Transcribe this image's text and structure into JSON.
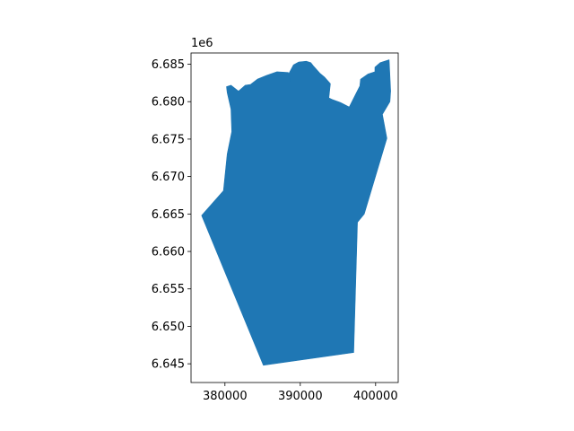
{
  "chart_data": {
    "type": "map",
    "offset_text": "1e6",
    "xlim": [
      375500,
      403000
    ],
    "ylim": [
      6642500,
      6686500
    ],
    "x_ticks": [
      {
        "value": 380000,
        "label": "380000"
      },
      {
        "value": 390000,
        "label": "390000"
      },
      {
        "value": 400000,
        "label": "400000"
      }
    ],
    "y_ticks": [
      {
        "value": 6645000,
        "label": "6.645"
      },
      {
        "value": 6650000,
        "label": "6.650"
      },
      {
        "value": 6655000,
        "label": "6.655"
      },
      {
        "value": 6660000,
        "label": "6.660"
      },
      {
        "value": 6665000,
        "label": "6.665"
      },
      {
        "value": 6670000,
        "label": "6.670"
      },
      {
        "value": 6675000,
        "label": "6.675"
      },
      {
        "value": 6680000,
        "label": "6.680"
      },
      {
        "value": 6685000,
        "label": "6.685"
      }
    ],
    "fill_color": "#1f77b4",
    "region": [
      [
        385100,
        6644800
      ],
      [
        397100,
        6646500
      ],
      [
        397600,
        6663900
      ],
      [
        398500,
        6665000
      ],
      [
        401500,
        6675100
      ],
      [
        400900,
        6678300
      ],
      [
        401900,
        6680000
      ],
      [
        402000,
        6681400
      ],
      [
        401800,
        6685600
      ],
      [
        400600,
        6685200
      ],
      [
        399900,
        6684600
      ],
      [
        399900,
        6684000
      ],
      [
        399000,
        6683700
      ],
      [
        398000,
        6683000
      ],
      [
        397900,
        6682100
      ],
      [
        397300,
        6680900
      ],
      [
        396500,
        6679300
      ],
      [
        395300,
        6679900
      ],
      [
        394200,
        6680300
      ],
      [
        393800,
        6680500
      ],
      [
        394000,
        6682400
      ],
      [
        393200,
        6683300
      ],
      [
        392600,
        6683800
      ],
      [
        391800,
        6684700
      ],
      [
        391400,
        6685200
      ],
      [
        390800,
        6685400
      ],
      [
        389800,
        6685300
      ],
      [
        389100,
        6684900
      ],
      [
        388400,
        6683600
      ],
      [
        388700,
        6682700
      ],
      [
        388400,
        6683900
      ],
      [
        386900,
        6684000
      ],
      [
        385500,
        6683500
      ],
      [
        384300,
        6683000
      ],
      [
        383400,
        6682300
      ],
      [
        382700,
        6682200
      ],
      [
        381800,
        6681400
      ],
      [
        380800,
        6682200
      ],
      [
        380200,
        6682000
      ],
      [
        380300,
        6681200
      ],
      [
        380800,
        6679000
      ],
      [
        380900,
        6676000
      ],
      [
        380300,
        6673000
      ],
      [
        379800,
        6668100
      ],
      [
        376900,
        6664800
      ]
    ]
  }
}
